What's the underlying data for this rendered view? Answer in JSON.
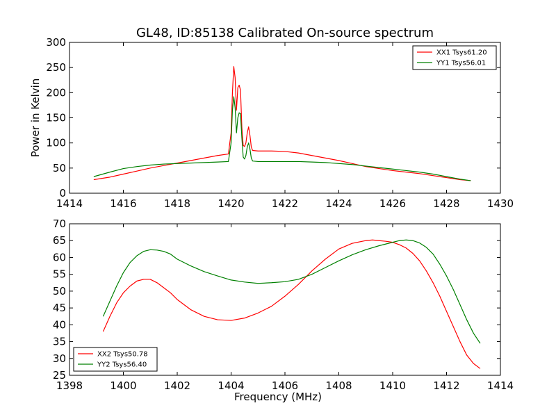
{
  "figure": {
    "title": "GL48, ID:85138 Calibrated On-source spectrum",
    "background": "#ffffff"
  },
  "chart_data": [
    {
      "type": "line",
      "title": "GL48, ID:85138 Calibrated On-source spectrum",
      "xlabel": "",
      "ylabel": "Power in Kelvin",
      "xlim": [
        1414,
        1430
      ],
      "ylim": [
        0,
        300
      ],
      "xticks": [
        1414,
        1416,
        1418,
        1420,
        1422,
        1424,
        1426,
        1428,
        1430
      ],
      "yticks": [
        0,
        50,
        100,
        150,
        200,
        250,
        300
      ],
      "grid": false,
      "legend_position": "top-right",
      "series": [
        {
          "name": "XX1 Tsys61.20",
          "color": "#ff0000",
          "x": [
            1414.9,
            1415.5,
            1416.0,
            1416.5,
            1417.0,
            1417.5,
            1418.0,
            1418.5,
            1419.0,
            1419.5,
            1419.9,
            1420.0,
            1420.05,
            1420.1,
            1420.15,
            1420.2,
            1420.25,
            1420.3,
            1420.35,
            1420.4,
            1420.45,
            1420.5,
            1420.55,
            1420.6,
            1420.65,
            1420.7,
            1420.75,
            1420.8,
            1421.0,
            1421.5,
            1422.0,
            1422.5,
            1423.0,
            1423.5,
            1424.0,
            1424.5,
            1425.0,
            1425.5,
            1426.0,
            1426.5,
            1427.0,
            1427.5,
            1428.0,
            1428.5,
            1428.9
          ],
          "y": [
            27,
            32,
            38,
            44,
            50,
            55,
            60,
            65,
            70,
            75,
            78,
            120,
            200,
            252,
            230,
            165,
            210,
            215,
            205,
            130,
            95,
            93,
            100,
            120,
            132,
            115,
            92,
            85,
            84,
            84,
            83,
            80,
            75,
            70,
            65,
            59,
            53,
            49,
            45,
            42,
            39,
            35,
            31,
            27,
            25
          ]
        },
        {
          "name": "YY1 Tsys56.01",
          "color": "#008000",
          "x": [
            1414.9,
            1415.5,
            1416.0,
            1416.5,
            1417.0,
            1417.5,
            1418.0,
            1418.5,
            1419.0,
            1419.5,
            1419.9,
            1420.0,
            1420.05,
            1420.1,
            1420.15,
            1420.2,
            1420.25,
            1420.3,
            1420.35,
            1420.4,
            1420.45,
            1420.5,
            1420.55,
            1420.6,
            1420.65,
            1420.7,
            1420.75,
            1420.8,
            1421.0,
            1421.5,
            1422.0,
            1422.5,
            1423.0,
            1423.5,
            1424.0,
            1424.5,
            1425.0,
            1425.5,
            1426.0,
            1426.5,
            1427.0,
            1427.5,
            1428.0,
            1428.5,
            1428.9
          ],
          "y": [
            33,
            42,
            49,
            53,
            56,
            58,
            59,
            60,
            61,
            62,
            63,
            100,
            165,
            192,
            170,
            120,
            150,
            160,
            158,
            110,
            72,
            68,
            75,
            92,
            100,
            88,
            70,
            64,
            63,
            63,
            63,
            63,
            62,
            61,
            59,
            57,
            54,
            51,
            48,
            45,
            42,
            38,
            33,
            28,
            25
          ]
        }
      ]
    },
    {
      "type": "line",
      "title": "",
      "xlabel": "Frequency (MHz)",
      "ylabel": "",
      "xlim": [
        1398,
        1414
      ],
      "ylim": [
        25,
        70
      ],
      "xticks": [
        1398,
        1400,
        1402,
        1404,
        1406,
        1408,
        1410,
        1412,
        1414
      ],
      "yticks": [
        25,
        30,
        35,
        40,
        45,
        50,
        55,
        60,
        65,
        70
      ],
      "grid": false,
      "legend_position": "bottom-left",
      "series": [
        {
          "name": "XX2 Tsys50.78",
          "color": "#ff0000",
          "x": [
            1399.25,
            1399.5,
            1399.75,
            1400.0,
            1400.25,
            1400.5,
            1400.75,
            1401.0,
            1401.25,
            1401.5,
            1401.75,
            1402.0,
            1402.5,
            1403.0,
            1403.5,
            1404.0,
            1404.5,
            1405.0,
            1405.5,
            1406.0,
            1406.5,
            1407.0,
            1407.5,
            1408.0,
            1408.5,
            1409.0,
            1409.25,
            1409.5,
            1409.75,
            1410.0,
            1410.25,
            1410.5,
            1410.75,
            1411.0,
            1411.25,
            1411.5,
            1411.75,
            1412.0,
            1412.25,
            1412.5,
            1412.75,
            1413.0,
            1413.25
          ],
          "y": [
            38,
            42.5,
            46.5,
            49.5,
            51.5,
            53,
            53.5,
            53.5,
            52.5,
            51,
            49.5,
            47.5,
            44.5,
            42.5,
            41.5,
            41.3,
            42,
            43.5,
            45.5,
            48.5,
            52,
            56,
            59.5,
            62.5,
            64.2,
            65,
            65.2,
            65,
            64.8,
            64.5,
            63.8,
            62.8,
            61.2,
            59,
            56,
            52.5,
            48.5,
            44,
            39.5,
            35,
            31,
            28.5,
            27
          ]
        },
        {
          "name": "YY2 Tsys56.40",
          "color": "#008000",
          "x": [
            1399.25,
            1399.5,
            1399.75,
            1400.0,
            1400.25,
            1400.5,
            1400.75,
            1401.0,
            1401.25,
            1401.5,
            1401.75,
            1402.0,
            1402.5,
            1403.0,
            1403.5,
            1404.0,
            1404.5,
            1405.0,
            1405.5,
            1406.0,
            1406.5,
            1407.0,
            1407.5,
            1408.0,
            1408.5,
            1409.0,
            1409.5,
            1410.0,
            1410.25,
            1410.5,
            1410.75,
            1411.0,
            1411.25,
            1411.5,
            1411.75,
            1412.0,
            1412.25,
            1412.5,
            1412.75,
            1413.0,
            1413.25
          ],
          "y": [
            42.5,
            47,
            51.5,
            55.5,
            58.5,
            60.5,
            61.8,
            62.3,
            62.2,
            61.8,
            61,
            59.5,
            57.5,
            55.8,
            54.5,
            53.3,
            52.7,
            52.3,
            52.5,
            52.8,
            53.5,
            55,
            57,
            59,
            60.8,
            62.3,
            63.5,
            64.5,
            65,
            65.2,
            65,
            64.3,
            63,
            61,
            58,
            54.5,
            50.5,
            46,
            41.5,
            37.5,
            34.5
          ]
        }
      ]
    }
  ]
}
